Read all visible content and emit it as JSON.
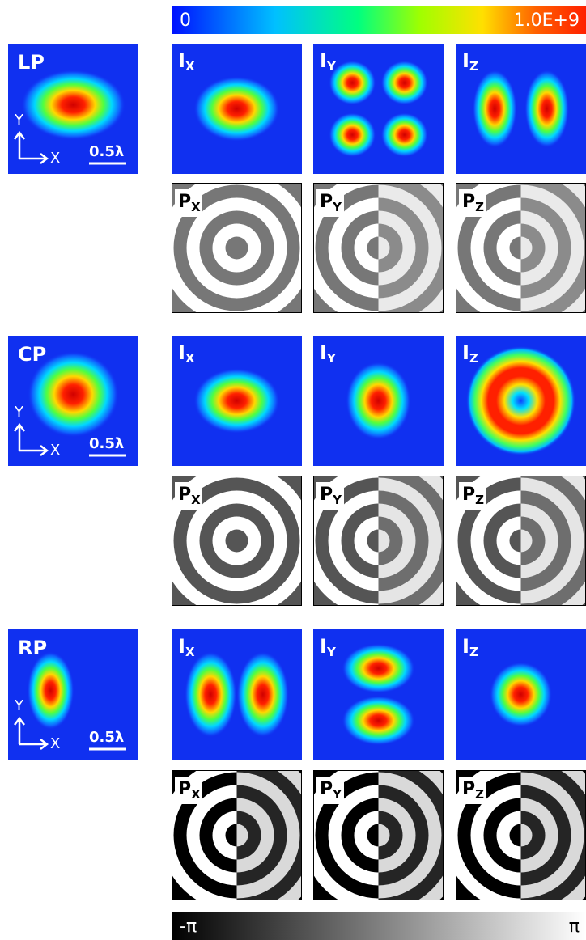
{
  "colorbar": {
    "min_label": "0",
    "max_label": "1.0E+9"
  },
  "phase_bar": {
    "min_label": "-π",
    "max_label": "π"
  },
  "groups": [
    {
      "label": "LP",
      "axis_y": "Y",
      "axis_x": "X",
      "scale": "0.5λ",
      "intensity": [
        {
          "symbol": "I",
          "subscript": "X"
        },
        {
          "symbol": "I",
          "subscript": "Y"
        },
        {
          "symbol": "I",
          "subscript": "Z"
        }
      ],
      "phase": [
        {
          "symbol": "P",
          "subscript": "X"
        },
        {
          "symbol": "P",
          "subscript": "Y"
        },
        {
          "symbol": "P",
          "subscript": "Z"
        }
      ]
    },
    {
      "label": "CP",
      "axis_y": "Y",
      "axis_x": "X",
      "scale": "0.5λ",
      "intensity": [
        {
          "symbol": "I",
          "subscript": "X"
        },
        {
          "symbol": "I",
          "subscript": "Y"
        },
        {
          "symbol": "I",
          "subscript": "Z"
        }
      ],
      "phase": [
        {
          "symbol": "P",
          "subscript": "X"
        },
        {
          "symbol": "P",
          "subscript": "Y"
        },
        {
          "symbol": "P",
          "subscript": "Z"
        }
      ]
    },
    {
      "label": "RP",
      "axis_y": "Y",
      "axis_x": "X",
      "scale": "0.5λ",
      "intensity": [
        {
          "symbol": "I",
          "subscript": "X"
        },
        {
          "symbol": "I",
          "subscript": "Y"
        },
        {
          "symbol": "I",
          "subscript": "Z"
        }
      ],
      "phase": [
        {
          "symbol": "P",
          "subscript": "X"
        },
        {
          "symbol": "P",
          "subscript": "Y"
        },
        {
          "symbol": "P",
          "subscript": "Z"
        }
      ]
    }
  ]
}
